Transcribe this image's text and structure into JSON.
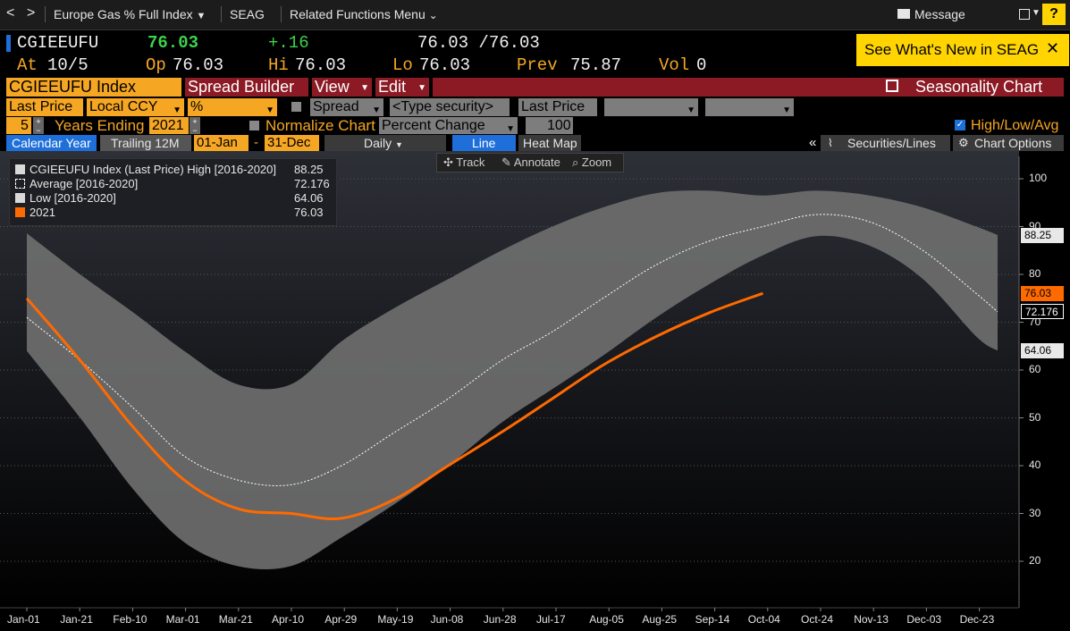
{
  "nav": {
    "back": "<",
    "forward": ">",
    "breadcrumb1": "Europe Gas % Full Index",
    "breadcrumb2": "SEAG",
    "breadcrumb3": "Related Functions Menu",
    "message": "Message",
    "help": "?"
  },
  "quote": {
    "ticker": "CGIEEUFU",
    "last": "76.03",
    "change": "+.16",
    "bidask": "76.03 /76.03",
    "at_label": "At",
    "at_value": "10/5",
    "op_label": "Op",
    "op_value": "76.03",
    "hi_label": "Hi",
    "hi_value": "76.03",
    "lo_label": "Lo",
    "lo_value": "76.03",
    "prev_label": "Prev",
    "prev_value": "75.87",
    "vol_label": "Vol",
    "vol_value": "0"
  },
  "banner": {
    "text": "See What's New in SEAG",
    "close": "✕"
  },
  "toolbar1": {
    "security": "CGIEEUFU Index",
    "spread_builder": "Spread Builder",
    "view": "View",
    "edit": "Edit",
    "title": "Seasonality Chart"
  },
  "toolbar2": {
    "field": "Last Price",
    "currency": "Local CCY",
    "unit": "%",
    "spread": "Spread",
    "type_security": "<Type security>",
    "field2": "Last Price"
  },
  "toolbar3": {
    "years": "5",
    "years_ending_label": "Years Ending",
    "year_end": "2021",
    "normalize": "Normalize Chart",
    "percent_change": "Percent Change",
    "base": "100",
    "highlowavg": "High/Low/Avg"
  },
  "toolbar4": {
    "calendar_year": "Calendar Year",
    "trailing": "Trailing 12M",
    "start": "01-Jan",
    "dash": "-",
    "end": "31-Dec",
    "freq": "Daily",
    "line": "Line",
    "heatmap": "Heat Map",
    "collapse": "«",
    "securities_lines": "Securities/Lines",
    "chart_options": "Chart Options"
  },
  "chart_tools": {
    "track": "Track",
    "annotate": "Annotate",
    "zoom": "Zoom"
  },
  "chart_data": {
    "type": "area",
    "legend": [
      {
        "label": "CGIEEUFU Index (Last Price) High [2016-2020]",
        "value": "88.25",
        "color": "#d9d9d9"
      },
      {
        "label": "Average  [2016-2020]",
        "value": "72.176",
        "color": "#ffffff"
      },
      {
        "label": "Low  [2016-2020]",
        "value": "64.06",
        "color": "#d9d9d9"
      },
      {
        "label": "2021",
        "value": "76.03",
        "color": "#ff6a00"
      }
    ],
    "x_ticks": [
      "Jan-01",
      "Jan-21",
      "Feb-10",
      "Mar-01",
      "Mar-21",
      "Apr-10",
      "Apr-29",
      "May-19",
      "Jun-08",
      "Jun-28",
      "Jul-17",
      "Aug-05",
      "Aug-25",
      "Sep-14",
      "Oct-04",
      "Oct-24",
      "Nov-13",
      "Dec-03",
      "Dec-23"
    ],
    "y_ticks": [
      20,
      30,
      40,
      50,
      60,
      70,
      80,
      90,
      100
    ],
    "ylim": [
      10,
      103
    ],
    "day_of_year": [
      1,
      21,
      41,
      60,
      80,
      100,
      119,
      139,
      159,
      179,
      198,
      217,
      237,
      257,
      277,
      297,
      317,
      337,
      357,
      365
    ],
    "series": [
      {
        "name": "High [2016-2020]",
        "values": [
          88.6,
          80,
          72,
          64,
          57,
          57,
          66,
          73,
          79,
          85,
          90,
          94,
          97,
          97.5,
          96.5,
          97.5,
          96.5,
          94,
          90,
          88.25
        ]
      },
      {
        "name": "Low [2016-2020]",
        "values": [
          64,
          50,
          35,
          24,
          19,
          19,
          25,
          32,
          40,
          49,
          56,
          63,
          71,
          78,
          84,
          88,
          86,
          79,
          67,
          64.06
        ]
      },
      {
        "name": "Average [2016-2020]",
        "values": [
          71,
          62,
          52,
          42,
          37,
          36,
          40,
          47,
          54,
          62,
          68,
          75,
          82,
          87,
          90,
          92.5,
          91,
          85,
          76,
          72.176
        ]
      },
      {
        "name": "2021",
        "values": [
          75,
          62,
          48,
          37,
          31,
          30,
          29,
          33,
          40,
          47,
          54,
          61,
          67,
          72,
          76.03
        ]
      }
    ],
    "colors": {
      "band": "#6e6e6e",
      "avg": "#ffffff",
      "current": "#ff6a00",
      "bg_top": "#2e3038",
      "bg_bottom": "#000000"
    },
    "grid": true,
    "legend_position": "top-left",
    "y_axis_side": "right"
  }
}
